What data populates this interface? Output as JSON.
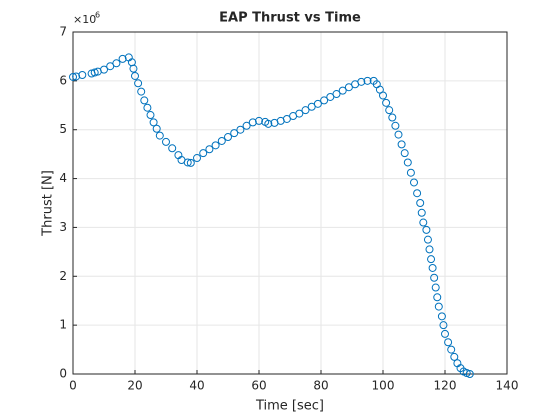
{
  "chart_data": {
    "type": "scatter",
    "title": "EAP Thrust vs Time",
    "xlabel": "Time [sec]",
    "ylabel": "Thrust [N]",
    "y_scale_label": {
      "base": "×10",
      "power": "6"
    },
    "series": [
      {
        "name": "Thrust",
        "color": "#0072bd",
        "x": [
          0,
          1,
          3,
          6,
          7,
          8,
          10,
          12,
          14,
          16,
          18,
          19,
          19.5,
          20,
          21,
          22,
          23,
          24,
          25,
          26,
          27,
          28,
          30,
          32,
          34,
          35,
          37,
          38,
          40,
          42,
          44,
          46,
          48,
          50,
          52,
          54,
          56,
          58,
          60,
          62,
          63,
          65,
          67,
          69,
          71,
          73,
          75,
          77,
          79,
          81,
          83,
          85,
          87,
          89,
          91,
          93,
          95,
          97,
          98,
          99,
          100,
          101,
          102,
          103,
          104,
          105,
          106,
          107,
          108,
          109,
          110,
          111,
          112,
          112.5,
          113,
          114,
          114.5,
          115,
          115.5,
          116,
          116.5,
          117,
          117.5,
          118,
          119,
          119.5,
          120,
          121,
          122,
          123,
          124,
          125,
          126,
          127,
          128
        ],
        "values": [
          6.08,
          6.09,
          6.12,
          6.15,
          6.17,
          6.19,
          6.23,
          6.3,
          6.36,
          6.45,
          6.48,
          6.38,
          6.25,
          6.1,
          5.95,
          5.78,
          5.6,
          5.45,
          5.3,
          5.15,
          5.02,
          4.88,
          4.75,
          4.62,
          4.48,
          4.38,
          4.33,
          4.32,
          4.42,
          4.52,
          4.6,
          4.68,
          4.77,
          4.85,
          4.93,
          5.0,
          5.08,
          5.15,
          5.18,
          5.16,
          5.12,
          5.14,
          5.18,
          5.22,
          5.28,
          5.33,
          5.4,
          5.47,
          5.53,
          5.6,
          5.67,
          5.73,
          5.8,
          5.87,
          5.93,
          5.98,
          6.0,
          6.0,
          5.93,
          5.82,
          5.7,
          5.55,
          5.4,
          5.25,
          5.08,
          4.9,
          4.7,
          4.52,
          4.33,
          4.12,
          3.92,
          3.7,
          3.5,
          3.3,
          3.1,
          2.95,
          2.75,
          2.55,
          2.35,
          2.17,
          1.97,
          1.77,
          1.57,
          1.38,
          1.18,
          1.0,
          0.82,
          0.65,
          0.5,
          0.35,
          0.22,
          0.12,
          0.05,
          0.02,
          0.0
        ]
      }
    ],
    "xlim": [
      0,
      140
    ],
    "xticks": [
      0,
      20,
      40,
      60,
      80,
      100,
      120,
      140
    ],
    "ylim": [
      0,
      7
    ],
    "yticks": [
      0,
      1,
      2,
      3,
      4,
      5,
      6,
      7
    ],
    "grid": true
  }
}
